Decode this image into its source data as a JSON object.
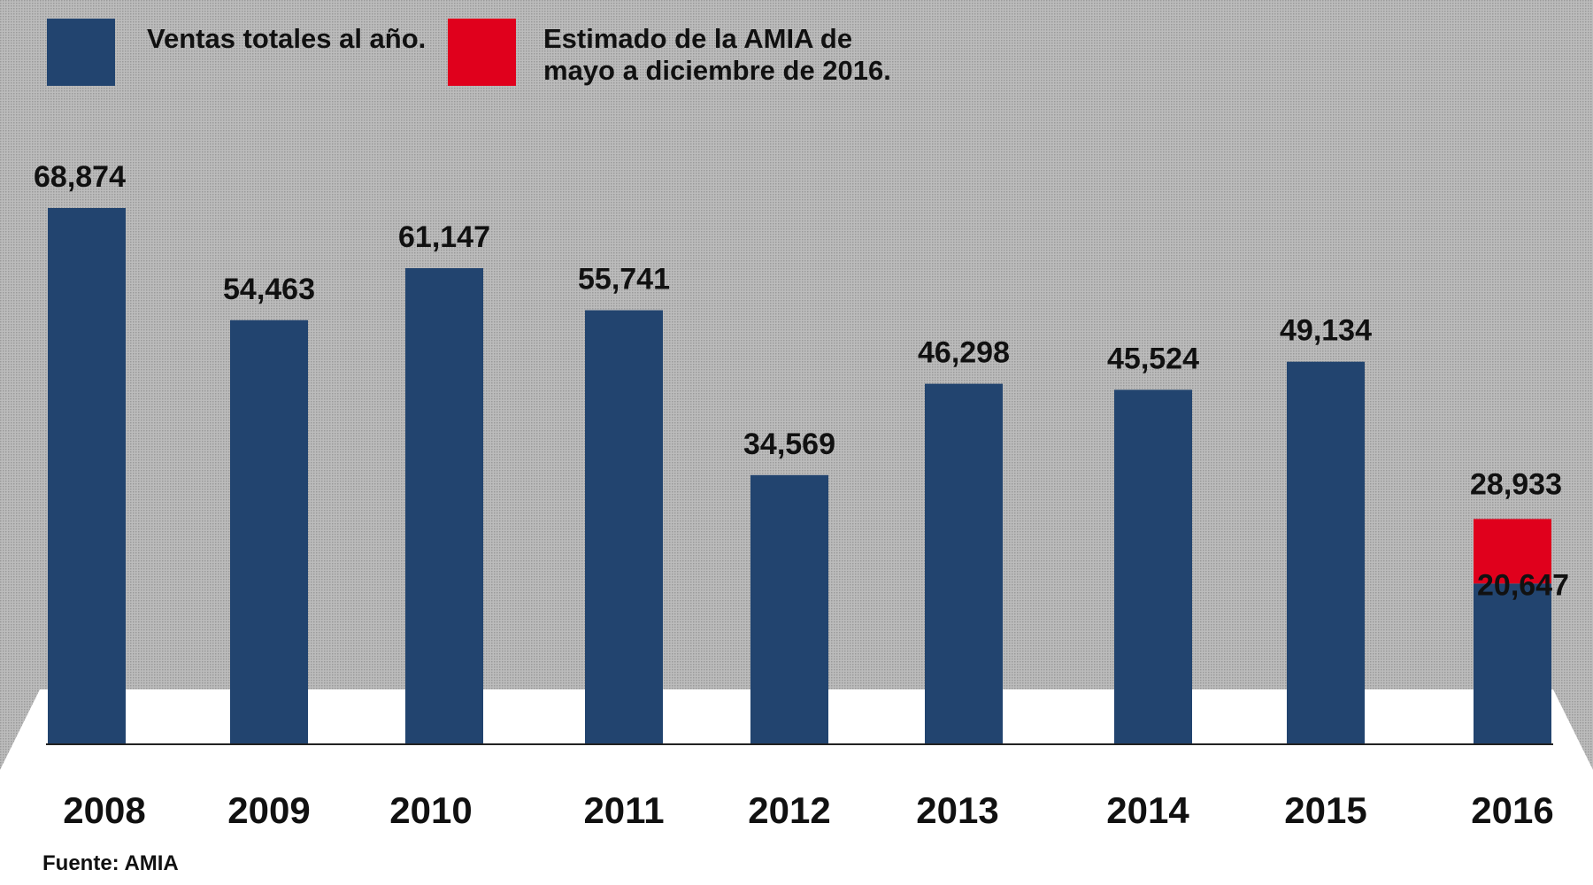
{
  "chart_data": {
    "type": "bar",
    "title": "",
    "xlabel": "",
    "ylabel": "",
    "ylim": [
      0,
      75000
    ],
    "grid": false,
    "legend_position": "top-left",
    "categories": [
      "2008",
      "2009",
      "2010",
      "2011",
      "2012",
      "2013",
      "2014",
      "2015",
      "2016"
    ],
    "series": [
      {
        "name": "Ventas totales al año.",
        "color": "#22446f",
        "values": [
          68874,
          54463,
          61147,
          55741,
          34569,
          46298,
          45524,
          49134,
          20647
        ],
        "labels": [
          "68,874",
          "54,463",
          "61,147",
          "55,741",
          "34,569",
          "46,298",
          "45,524",
          "49,134",
          "20,647"
        ]
      },
      {
        "name": "Estimado de la AMIA de mayo a diciembre de 2016.",
        "name_lines": [
          "Estimado de la AMIA de",
          "mayo a diciembre de 2016."
        ],
        "color": "#e0001c",
        "stacked_on": "Ventas totales al año.",
        "values": [
          null,
          null,
          null,
          null,
          null,
          null,
          null,
          null,
          8286
        ],
        "total_labels": [
          null,
          null,
          null,
          null,
          null,
          null,
          null,
          null,
          "28,933"
        ]
      }
    ],
    "source": "Fuente: AMIA"
  }
}
